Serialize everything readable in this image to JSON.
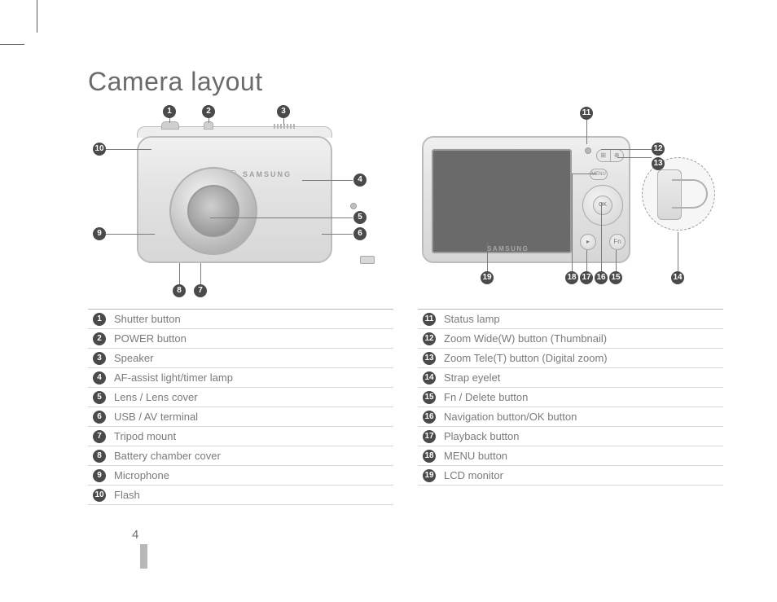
{
  "title": "Camera layout",
  "page_number": "4",
  "brand": "SAMSUNG",
  "colors": {
    "text": "#6b6b6b",
    "muted_text": "#7a7a7a",
    "rule": "#d6d6d6",
    "top_rule": "#b7b7b7",
    "bullet_bg": "#4a4a4a",
    "bullet_fg": "#ffffff",
    "body_stroke": "#bcbcbc",
    "lcd_fill": "#6a6a6a"
  },
  "front_callouts": [
    {
      "n": "1",
      "label": "Shutter button"
    },
    {
      "n": "2",
      "label": "POWER button"
    },
    {
      "n": "3",
      "label": "Speaker"
    },
    {
      "n": "4",
      "label": "AF-assist light/timer lamp"
    },
    {
      "n": "5",
      "label": "Lens / Lens cover"
    },
    {
      "n": "6",
      "label": "USB / AV terminal"
    },
    {
      "n": "7",
      "label": "Tripod mount"
    },
    {
      "n": "8",
      "label": "Battery chamber cover"
    },
    {
      "n": "9",
      "label": "Microphone"
    },
    {
      "n": "10",
      "label": "Flash"
    }
  ],
  "back_callouts": [
    {
      "n": "11",
      "label": "Status lamp"
    },
    {
      "n": "12",
      "label": "Zoom Wide(W) button (Thumbnail)"
    },
    {
      "n": "13",
      "label": "Zoom Tele(T) button (Digital zoom)"
    },
    {
      "n": "14",
      "label": "Strap eyelet"
    },
    {
      "n": "15",
      "label": "Fn / Delete button"
    },
    {
      "n": "16",
      "label": "Navigation button/OK button"
    },
    {
      "n": "17",
      "label": "Playback button"
    },
    {
      "n": "18",
      "label": "MENU button"
    },
    {
      "n": "19",
      "label": "LCD monitor"
    }
  ],
  "buttons": {
    "menu": "MENU",
    "ok": "OK",
    "play": "▸",
    "fn": "Fn",
    "zoom_w_icon": "⊞",
    "zoom_t_icon": "⊕"
  }
}
